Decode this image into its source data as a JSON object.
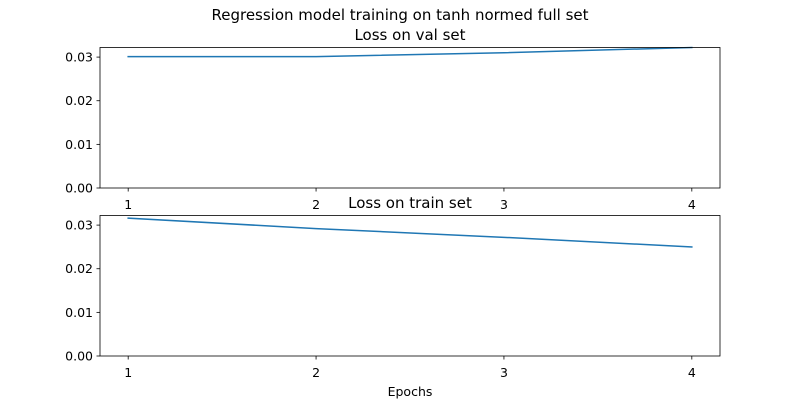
{
  "figure": {
    "suptitle": "Regression model training on tanh normed full set"
  },
  "colors": {
    "line": "#1f77b4"
  },
  "chart_data": [
    {
      "type": "line",
      "title": "Loss on val set",
      "xlabel": "",
      "ylabel": "",
      "x": [
        1,
        2,
        3,
        4
      ],
      "xticks": [
        "1",
        "2",
        "3",
        "4"
      ],
      "xlim": [
        0.85,
        4.15
      ],
      "yticks": [
        "0.00",
        "0.01",
        "0.02",
        "0.03"
      ],
      "ylim": [
        0,
        0.0322
      ],
      "grid": false,
      "series": [
        {
          "values": [
            0.0301,
            0.0301,
            0.031,
            0.0322
          ]
        }
      ]
    },
    {
      "type": "line",
      "title": "Loss on train set",
      "xlabel": "Epochs",
      "ylabel": "",
      "x": [
        1,
        2,
        3,
        4
      ],
      "xticks": [
        "1",
        "2",
        "3",
        "4"
      ],
      "xlim": [
        0.85,
        4.15
      ],
      "yticks": [
        "0.00",
        "0.01",
        "0.02",
        "0.03"
      ],
      "ylim": [
        0,
        0.0322
      ],
      "grid": false,
      "series": [
        {
          "values": [
            0.0316,
            0.0292,
            0.0272,
            0.025
          ]
        }
      ]
    }
  ]
}
